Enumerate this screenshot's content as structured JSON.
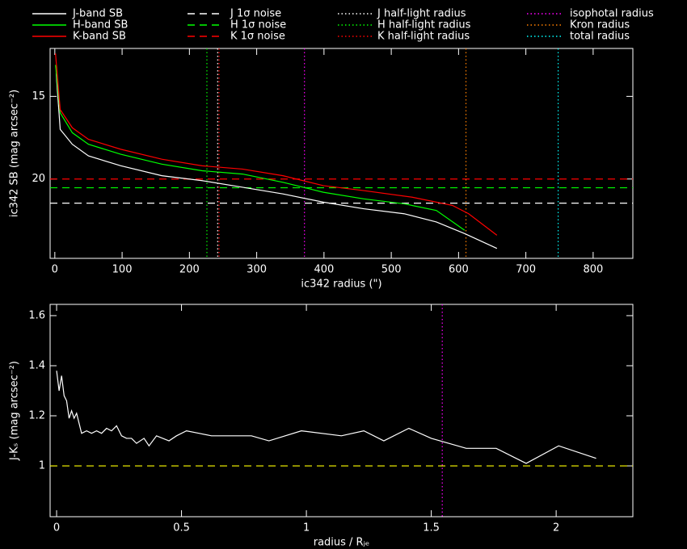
{
  "chart_data": [
    {
      "type": "line",
      "xlabel": "ic342 radius (\")",
      "ylabel": "ic342 SB (mag arcsec⁻²)",
      "xlim": [
        -7,
        859
      ],
      "ylim": [
        24.8,
        12.1
      ],
      "xticks": [
        0,
        100,
        200,
        300,
        400,
        500,
        600,
        700,
        800
      ],
      "yticks": [
        15,
        20
      ],
      "series": [
        {
          "name": "J-band SB",
          "color": "#ffffff",
          "x": [
            2,
            8,
            26,
            50,
            98,
            159,
            219,
            279,
            339,
            399,
            459,
            519,
            567,
            609,
            657
          ],
          "values": [
            13.6,
            17.0,
            17.9,
            18.6,
            19.2,
            19.8,
            20.1,
            20.5,
            20.9,
            21.4,
            21.8,
            22.1,
            22.6,
            23.3,
            24.2
          ]
        },
        {
          "name": "H-band SB",
          "color": "#00ff00",
          "x": [
            1,
            8,
            26,
            50,
            98,
            159,
            219,
            279,
            339,
            399,
            459,
            519,
            567,
            609
          ],
          "values": [
            13.1,
            16.0,
            17.2,
            17.9,
            18.5,
            19.1,
            19.5,
            19.7,
            20.2,
            20.8,
            21.2,
            21.5,
            21.9,
            23.1
          ]
        },
        {
          "name": "K-band SB",
          "color": "#ff0000",
          "x": [
            1,
            8,
            26,
            50,
            98,
            159,
            219,
            279,
            339,
            399,
            459,
            531,
            591,
            615,
            657
          ],
          "values": [
            12.4,
            15.8,
            16.9,
            17.6,
            18.2,
            18.8,
            19.2,
            19.4,
            19.8,
            20.4,
            20.7,
            21.1,
            21.6,
            22.1,
            23.4
          ]
        }
      ],
      "reference_lines": [
        {
          "name": "J 1σ noise",
          "color": "#ffffff",
          "axis": "y",
          "value": 21.46,
          "style": "dashed"
        },
        {
          "name": "H 1σ noise",
          "color": "#00ff00",
          "axis": "y",
          "value": 20.53,
          "style": "dashed"
        },
        {
          "name": "K 1σ noise",
          "color": "#ff0000",
          "axis": "y",
          "value": 20.0,
          "style": "dashed"
        },
        {
          "name": "J half-light radius",
          "color": "#ffffff",
          "axis": "x",
          "value": 242,
          "style": "dotted"
        },
        {
          "name": "H half-light radius",
          "color": "#00ff00",
          "axis": "x",
          "value": 226,
          "style": "dotted"
        },
        {
          "name": "K half-light radius",
          "color": "#ff0000",
          "axis": "x",
          "value": 244,
          "style": "dotted"
        },
        {
          "name": "isophotal radius",
          "color": "#ff00ff",
          "axis": "x",
          "value": 371,
          "style": "dotted"
        },
        {
          "name": "Kron radius",
          "color": "#ff8000",
          "axis": "x",
          "value": 611,
          "style": "dotted"
        },
        {
          "name": "total radius",
          "color": "#00ffff",
          "axis": "x",
          "value": 748,
          "style": "dotted"
        }
      ]
    },
    {
      "type": "line",
      "xlabel": "radius / Rⱼₑ",
      "ylabel": "J-Kₛ (mag arcsec⁻²)",
      "xlim": [
        -0.026,
        2.307
      ],
      "ylim": [
        0.797,
        1.645
      ],
      "xticks": [
        0,
        0.5,
        1,
        1.5,
        2
      ],
      "yticks": [
        1,
        1.2,
        1.4,
        1.6
      ],
      "series": [
        {
          "color": "#ffffff",
          "x": [
            0.0,
            0.01,
            0.02,
            0.03,
            0.04,
            0.05,
            0.06,
            0.07,
            0.08,
            0.09,
            0.1,
            0.12,
            0.14,
            0.16,
            0.18,
            0.2,
            0.22,
            0.24,
            0.26,
            0.28,
            0.3,
            0.32,
            0.35,
            0.37,
            0.4,
            0.45,
            0.48,
            0.52,
            0.57,
            0.62,
            0.7,
            0.78,
            0.85,
            0.98,
            1.14,
            1.23,
            1.31,
            1.41,
            1.5,
            1.64,
            1.76,
            1.88,
            2.01,
            2.16
          ],
          "values": [
            1.38,
            1.3,
            1.36,
            1.28,
            1.26,
            1.19,
            1.22,
            1.19,
            1.21,
            1.17,
            1.13,
            1.14,
            1.13,
            1.14,
            1.13,
            1.15,
            1.14,
            1.16,
            1.12,
            1.11,
            1.11,
            1.09,
            1.11,
            1.08,
            1.12,
            1.1,
            1.12,
            1.14,
            1.13,
            1.12,
            1.12,
            1.12,
            1.1,
            1.14,
            1.12,
            1.14,
            1.1,
            1.15,
            1.11,
            1.07,
            1.07,
            1.01,
            1.08,
            1.03
          ]
        }
      ],
      "reference_lines": [
        {
          "color": "#ffff00",
          "axis": "y",
          "value": 1,
          "style": "dashed"
        },
        {
          "color": "#ff00ff",
          "axis": "x",
          "value": 1.544,
          "style": "dotted"
        }
      ]
    }
  ]
}
